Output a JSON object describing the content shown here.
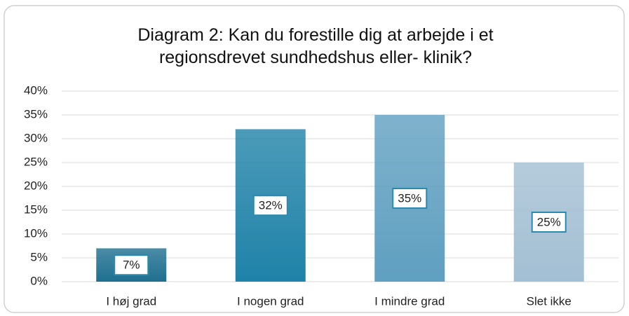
{
  "chart_data": {
    "type": "bar",
    "title": "Diagram 2: Kan du forestille dig at arbejde i et regionsdrevet sundhedshus eller- klinik?",
    "categories": [
      "I høj grad",
      "I nogen grad",
      "I mindre grad",
      "Slet ikke"
    ],
    "values": [
      7,
      32,
      35,
      25
    ],
    "value_labels": [
      "7%",
      "32%",
      "35%",
      "25%"
    ],
    "colors": [
      "#1e6f8f",
      "#1f82a8",
      "#5f9fc0",
      "#a3bfd3"
    ],
    "ylim": [
      0,
      40
    ],
    "yticks": [
      {
        "value": 0,
        "label": "0%"
      },
      {
        "value": 5,
        "label": "5%"
      },
      {
        "value": 10,
        "label": "10%"
      },
      {
        "value": 15,
        "label": "15%"
      },
      {
        "value": 20,
        "label": "20%"
      },
      {
        "value": 25,
        "label": "25%"
      },
      {
        "value": 30,
        "label": "30%"
      },
      {
        "value": 35,
        "label": "35%"
      },
      {
        "value": 40,
        "label": "40%"
      }
    ],
    "grid": true
  }
}
